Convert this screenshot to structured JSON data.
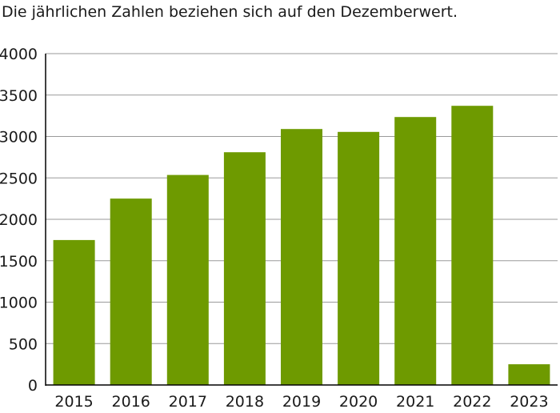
{
  "chart_data": {
    "type": "bar",
    "subtitle": "Die jährlichen Zahlen beziehen sich auf den Dezemberwert.",
    "categories": [
      "2015",
      "2016",
      "2017",
      "2018",
      "2019",
      "2020",
      "2021",
      "2022",
      "2023"
    ],
    "values": [
      1750,
      2250,
      2535,
      2810,
      3090,
      3055,
      3235,
      3370,
      250
    ],
    "ylim": [
      0,
      4000
    ],
    "yticks": [
      "0",
      "500",
      "1000",
      "1500",
      "2000",
      "2500",
      "3000",
      "3500",
      "4000"
    ],
    "grid": true,
    "legend": "none",
    "bar_color": "#6e9a00",
    "grid_color": "#9a9a9a",
    "axis_color": "#000000"
  }
}
